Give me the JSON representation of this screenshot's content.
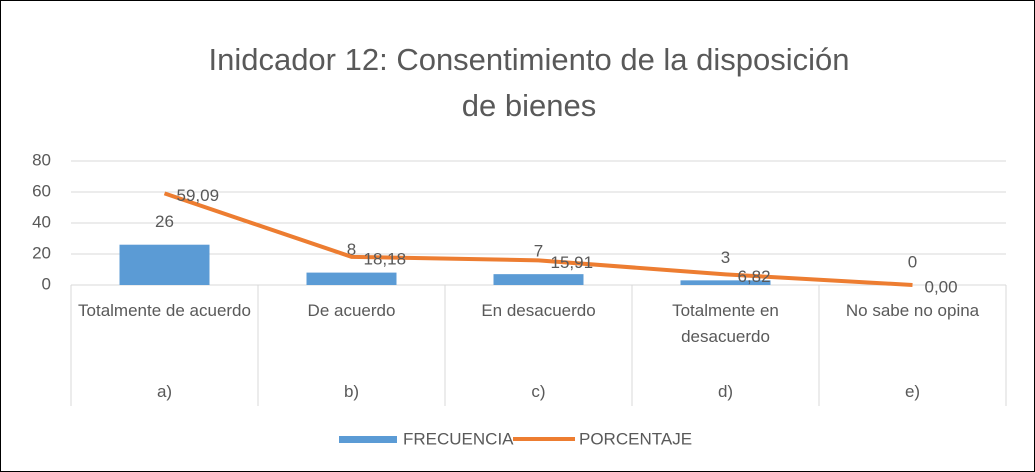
{
  "chart_data": {
    "type": "bar_line",
    "title": "Inidcador 12: Consentimiento de la disposición de bienes",
    "categories": [
      "Totalmente de acuerdo",
      "De acuerdo",
      "En desacuerdo",
      "Totalmente en desacuerdo",
      "No sabe no opina"
    ],
    "subcategories": [
      "a)",
      "b)",
      "c)",
      "d)",
      "e)"
    ],
    "series": [
      {
        "name": "FRECUENCIA",
        "type": "bar",
        "color": "#5b9bd5",
        "values": [
          26,
          8,
          7,
          3,
          0
        ]
      },
      {
        "name": "PORCENTAJE",
        "type": "line",
        "color": "#ed7d31",
        "values": [
          59.09,
          18.18,
          15.91,
          6.82,
          0.0
        ],
        "value_labels": [
          "59,09",
          "18,18",
          "15,91",
          "6,82",
          "0,00"
        ]
      }
    ],
    "ylim": [
      0,
      80
    ],
    "yticks": [
      0,
      20,
      40,
      60,
      80
    ],
    "grid": true,
    "legend": "bottom"
  }
}
